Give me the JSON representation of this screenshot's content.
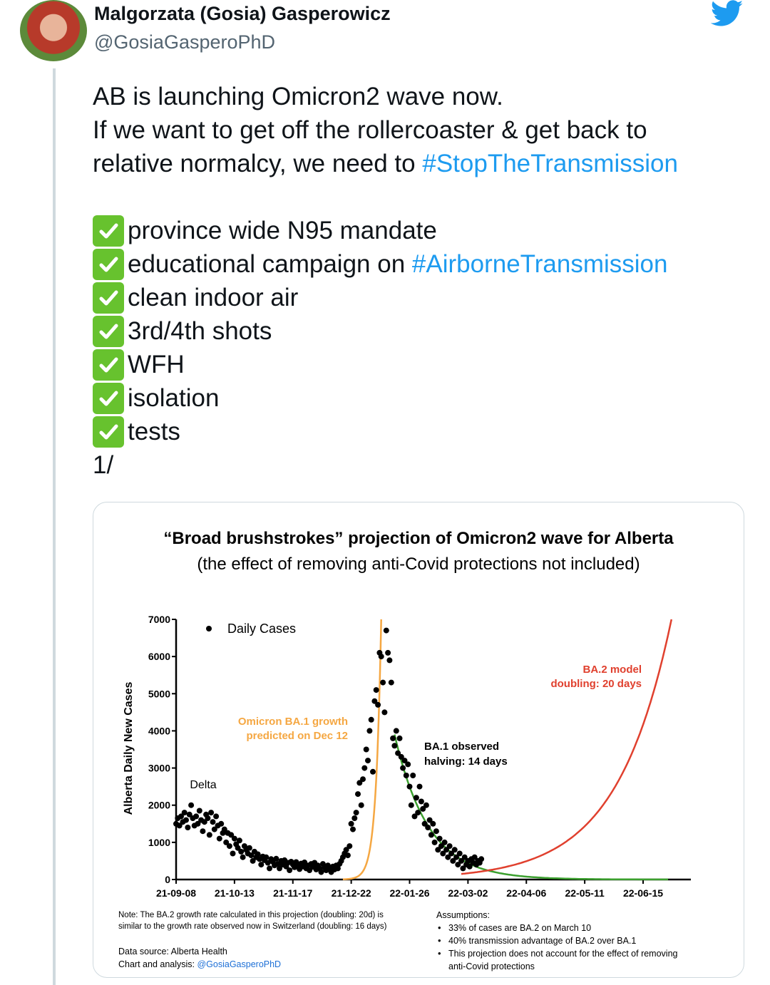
{
  "author": {
    "name": "Malgorzata (Gosia) Gasperowicz",
    "handle": "@GosiaGasperoPhD",
    "avatar_icon": "profile-photo"
  },
  "tweet": {
    "line1": "AB is launching Omicron2 wave now.",
    "line2": "If we want to get off the rollercoaster & get back to",
    "line3_prefix": "relative normalcy, we need to ",
    "hashtag1": "#StopTheTransmission",
    "checklist": [
      {
        "text": "province wide N95 mandate"
      },
      {
        "text": "educational campaign on ",
        "hashtag": "#AirborneTransmission"
      },
      {
        "text": "clean indoor air"
      },
      {
        "text": "3rd/4th shots"
      },
      {
        "text": "WFH"
      },
      {
        "text": "isolation"
      },
      {
        "text": "tests"
      }
    ],
    "thread_marker": "1/",
    "hashtag_color": "#1d9bf0",
    "check_color": "#67c22e"
  },
  "chart_data": {
    "type": "scatter",
    "title": "“Broad brushstrokes” projection of Omicron2 wave for Alberta",
    "subtitle": "(the effect of removing anti-Covid protections not included)",
    "ylabel": "Alberta Daily New Cases",
    "xlabel": "",
    "ylim": [
      0,
      7000
    ],
    "yticks": [
      "0",
      "1000",
      "2000",
      "3000",
      "4000",
      "5000",
      "6000",
      "7000"
    ],
    "xticks": [
      "21-09-08",
      "21-10-13",
      "21-11-17",
      "21-12-22",
      "22-01-26",
      "22-03-02",
      "22-04-06",
      "22-05-11",
      "22-06-15"
    ],
    "legend": [
      {
        "name": "Daily Cases",
        "marker": "dot",
        "position": "top-left"
      }
    ],
    "series": [
      {
        "name": "Daily Cases",
        "color": "#000000",
        "points": [
          [
            "21-09-08",
            1500
          ],
          [
            "21-09-09",
            1650
          ],
          [
            "21-09-10",
            1450
          ],
          [
            "21-09-11",
            1700
          ],
          [
            "21-09-12",
            1550
          ],
          [
            "21-09-13",
            1800
          ],
          [
            "21-09-14",
            1600
          ],
          [
            "21-09-15",
            1400
          ],
          [
            "21-09-16",
            1750
          ],
          [
            "21-09-17",
            2000
          ],
          [
            "21-09-18",
            1650
          ],
          [
            "21-09-19",
            1450
          ],
          [
            "21-09-20",
            1700
          ],
          [
            "21-09-21",
            1500
          ],
          [
            "21-09-22",
            1850
          ],
          [
            "21-09-23",
            1600
          ],
          [
            "21-09-24",
            1300
          ],
          [
            "21-09-25",
            1550
          ],
          [
            "21-09-26",
            1750
          ],
          [
            "21-09-27",
            1650
          ],
          [
            "21-09-28",
            1200
          ],
          [
            "21-09-29",
            1800
          ],
          [
            "21-09-30",
            1550
          ],
          [
            "21-10-01",
            1350
          ],
          [
            "21-10-02",
            1700
          ],
          [
            "21-10-03",
            1450
          ],
          [
            "21-10-04",
            1100
          ],
          [
            "21-10-05",
            1500
          ],
          [
            "21-10-06",
            1250
          ],
          [
            "21-10-07",
            1350
          ],
          [
            "21-10-08",
            1000
          ],
          [
            "21-10-09",
            1250
          ],
          [
            "21-10-10",
            900
          ],
          [
            "21-10-11",
            1200
          ],
          [
            "21-10-12",
            700
          ],
          [
            "21-10-13",
            1100
          ],
          [
            "21-10-14",
            950
          ],
          [
            "21-10-15",
            850
          ],
          [
            "21-10-16",
            1050
          ],
          [
            "21-10-17",
            750
          ],
          [
            "21-10-18",
            600
          ],
          [
            "21-10-19",
            900
          ],
          [
            "21-10-20",
            800
          ],
          [
            "21-10-21",
            700
          ],
          [
            "21-10-22",
            850
          ],
          [
            "21-10-23",
            650
          ],
          [
            "21-10-24",
            500
          ],
          [
            "21-10-25",
            750
          ],
          [
            "21-10-26",
            600
          ],
          [
            "21-10-27",
            680
          ],
          [
            "21-10-28",
            550
          ],
          [
            "21-10-29",
            400
          ],
          [
            "21-10-30",
            620
          ],
          [
            "21-10-31",
            520
          ],
          [
            "21-11-01",
            600
          ],
          [
            "21-11-02",
            450
          ],
          [
            "21-11-03",
            300
          ],
          [
            "21-11-04",
            550
          ],
          [
            "21-11-05",
            480
          ],
          [
            "21-11-06",
            380
          ],
          [
            "21-11-07",
            560
          ],
          [
            "21-11-08",
            420
          ],
          [
            "21-11-09",
            300
          ],
          [
            "21-11-10",
            500
          ],
          [
            "21-11-11",
            400
          ],
          [
            "21-11-12",
            520
          ],
          [
            "21-11-13",
            350
          ],
          [
            "21-11-14",
            450
          ],
          [
            "21-11-15",
            250
          ],
          [
            "21-11-16",
            480
          ],
          [
            "21-11-17",
            400
          ],
          [
            "21-11-18",
            330
          ],
          [
            "21-11-19",
            470
          ],
          [
            "21-11-20",
            380
          ],
          [
            "21-11-21",
            280
          ],
          [
            "21-11-22",
            430
          ],
          [
            "21-11-23",
            350
          ],
          [
            "21-11-24",
            460
          ],
          [
            "21-11-25",
            300
          ],
          [
            "21-11-26",
            380
          ],
          [
            "21-11-27",
            250
          ],
          [
            "21-11-28",
            420
          ],
          [
            "21-11-29",
            340
          ],
          [
            "21-11-30",
            450
          ],
          [
            "21-12-01",
            270
          ],
          [
            "21-12-02",
            380
          ],
          [
            "21-12-03",
            300
          ],
          [
            "21-12-04",
            200
          ],
          [
            "21-12-05",
            420
          ],
          [
            "21-12-06",
            320
          ],
          [
            "21-12-07",
            250
          ],
          [
            "21-12-08",
            380
          ],
          [
            "21-12-09",
            300
          ],
          [
            "21-12-10",
            200
          ],
          [
            "21-12-11",
            350
          ],
          [
            "21-12-12",
            270
          ],
          [
            "21-12-13",
            380
          ],
          [
            "21-12-14",
            300
          ],
          [
            "21-12-15",
            420
          ],
          [
            "21-12-16",
            500
          ],
          [
            "21-12-17",
            600
          ],
          [
            "21-12-18",
            700
          ],
          [
            "21-12-19",
            800
          ],
          [
            "21-12-20",
            650
          ],
          [
            "21-12-21",
            900
          ],
          [
            "21-12-22",
            1500
          ],
          [
            "21-12-23",
            1350
          ],
          [
            "21-12-24",
            1650
          ],
          [
            "21-12-25",
            1800
          ],
          [
            "21-12-26",
            2300
          ],
          [
            "21-12-27",
            2600
          ],
          [
            "21-12-28",
            2000
          ],
          [
            "21-12-29",
            2700
          ],
          [
            "21-12-30",
            3000
          ],
          [
            "21-12-31",
            3500
          ],
          [
            "22-01-01",
            3200
          ],
          [
            "22-01-02",
            4000
          ],
          [
            "22-01-03",
            4300
          ],
          [
            "22-01-04",
            2900
          ],
          [
            "22-01-05",
            4800
          ],
          [
            "22-01-06",
            5100
          ],
          [
            "22-01-07",
            4700
          ],
          [
            "22-01-08",
            6100
          ],
          [
            "22-01-09",
            6000
          ],
          [
            "22-01-10",
            5300
          ],
          [
            "22-01-11",
            4500
          ],
          [
            "22-01-12",
            6700
          ],
          [
            "22-01-13",
            6100
          ],
          [
            "22-01-14",
            5900
          ],
          [
            "22-01-15",
            5300
          ],
          [
            "22-01-16",
            3800
          ],
          [
            "22-01-17",
            3600
          ],
          [
            "22-01-18",
            4000
          ],
          [
            "22-01-19",
            3400
          ],
          [
            "22-01-20",
            3800
          ],
          [
            "22-01-21",
            3300
          ],
          [
            "22-01-22",
            3000
          ],
          [
            "22-01-23",
            3200
          ],
          [
            "22-01-24",
            2800
          ],
          [
            "22-01-25",
            3100
          ],
          [
            "22-01-26",
            2500
          ],
          [
            "22-01-27",
            2000
          ],
          [
            "22-01-28",
            2800
          ],
          [
            "22-01-29",
            1700
          ],
          [
            "22-01-30",
            2200
          ],
          [
            "22-01-31",
            1800
          ],
          [
            "22-02-01",
            2500
          ],
          [
            "22-02-02",
            2100
          ],
          [
            "22-02-03",
            1900
          ],
          [
            "22-02-04",
            1500
          ],
          [
            "22-02-05",
            2000
          ],
          [
            "22-02-06",
            1400
          ],
          [
            "22-02-07",
            1600
          ],
          [
            "22-02-08",
            1200
          ],
          [
            "22-02-09",
            1500
          ],
          [
            "22-02-10",
            1000
          ],
          [
            "22-02-11",
            1300
          ],
          [
            "22-02-12",
            800
          ],
          [
            "22-02-13",
            1100
          ],
          [
            "22-02-14",
            900
          ],
          [
            "22-02-15",
            700
          ],
          [
            "22-02-16",
            1000
          ],
          [
            "22-02-17",
            800
          ],
          [
            "22-02-18",
            600
          ],
          [
            "22-02-19",
            900
          ],
          [
            "22-02-20",
            700
          ],
          [
            "22-02-21",
            500
          ],
          [
            "22-02-22",
            800
          ],
          [
            "22-02-23",
            600
          ],
          [
            "22-02-24",
            400
          ],
          [
            "22-02-25",
            700
          ],
          [
            "22-02-26",
            500
          ],
          [
            "22-02-27",
            300
          ],
          [
            "22-02-28",
            600
          ],
          [
            "22-03-01",
            400
          ],
          [
            "22-03-02",
            500
          ],
          [
            "22-03-03",
            350
          ],
          [
            "22-03-04",
            550
          ],
          [
            "22-03-05",
            450
          ],
          [
            "22-03-06",
            600
          ],
          [
            "22-03-07",
            400
          ],
          [
            "22-03-08",
            500
          ],
          [
            "22-03-09",
            450
          ],
          [
            "22-03-10",
            550
          ]
        ]
      },
      {
        "name": "Omicron BA.1 growth predicted on Dec 12",
        "color": "#f5a742",
        "line": "exp-growth",
        "start": "21-12-17",
        "end": "22-01-09"
      },
      {
        "name": "BA.1 observed halving: 14 days",
        "color": "#3ca02f",
        "line": "exp-decay",
        "start": "22-01-17",
        "end": "22-06-30",
        "start_value": 3900,
        "halving_days": 14
      },
      {
        "name": "BA.2 model doubling: 20 days",
        "color": "#e0402e",
        "line": "exp-growth",
        "start": "22-02-26",
        "end": "22-07-02",
        "start_value": 150,
        "end_value": 7000
      }
    ],
    "annotations": [
      {
        "text": "Delta",
        "color": "#000000"
      },
      {
        "lines": [
          "Omicron BA.1 growth",
          "predicted on Dec 12"
        ],
        "color": "#f5a742"
      },
      {
        "lines": [
          "BA.1 observed",
          "halving: 14 days"
        ],
        "color": "#000000"
      },
      {
        "lines": [
          "BA.2 model",
          "doubling: 20 days"
        ],
        "color": "#e0402e"
      }
    ],
    "footnote": [
      "Note: The BA.2 growth rate calculated in this projection (doubling: 20d) is",
      "similar to the growth rate observed now in Switzerland (doubling: 16 days)"
    ],
    "data_source": "Data source: Alberta Health",
    "credit_prefix": "Chart and analysis: ",
    "credit_handle": "@GosiaGasperoPhD",
    "assumptions_title": "Assumptions:",
    "assumptions": [
      [
        "33% of cases are BA.2 on March 10"
      ],
      [
        "40% transmission advantage of BA.2 over BA.1"
      ],
      [
        "This projection does not account for the effect of removing",
        "anti-Covid protections"
      ]
    ]
  }
}
